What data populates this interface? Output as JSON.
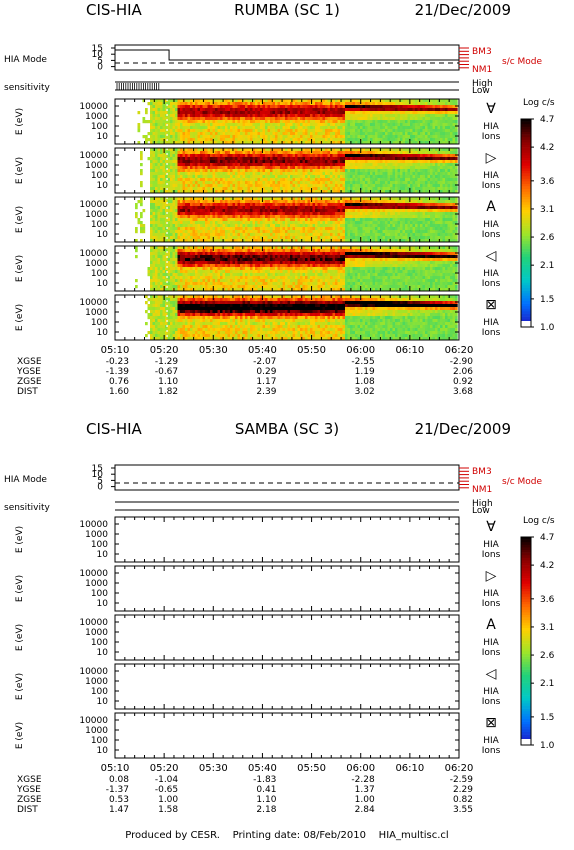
{
  "chart_data": {
    "type": "heatmap",
    "figure_id": "HIA_multisc.cl",
    "x_ticks": [
      "05:10",
      "05:20",
      "05:30",
      "05:40",
      "05:50",
      "06:00",
      "06:10",
      "06:20"
    ],
    "ephem_x_ticks": [
      "05:10",
      "05:20",
      "05:40",
      "06:00",
      "06:20"
    ],
    "ylabel": "E (eV)",
    "energy_ticks": [
      "10000",
      "1000",
      "100",
      "10"
    ],
    "mode_ticks": [
      "15",
      "10",
      "5",
      "0"
    ],
    "mode_labels": {
      "left": "HIA Mode",
      "top": "BM3",
      "bottom": "NM1",
      "right": "s/c Mode"
    },
    "sensitivity_label": "sensitivity",
    "sensitivity_levels": [
      "High",
      "Low"
    ],
    "colorbar": {
      "title": "Log c/s",
      "ticks": [
        "4.7",
        "4.2",
        "3.6",
        "3.1",
        "2.6",
        "2.1",
        "1.5",
        "1.0"
      ],
      "colors": [
        "#000000",
        "#8b0000",
        "#e00000",
        "#ff6a00",
        "#ffd000",
        "#9ee52a",
        "#22d27a",
        "#00c8c8",
        "#0070ff",
        "#2010c0"
      ]
    },
    "spacecraft": [
      {
        "instrument": "CIS-HIA",
        "title": "RUMBA (SC 1)",
        "date": "21/Dec/2009",
        "has_data": true,
        "mode_switch_time": "05:21",
        "data_start_time": "05:17",
        "panels": [
          {
            "direction_symbol": "∀",
            "label1": "HIA",
            "label2": "Ions",
            "peak": 4.0
          },
          {
            "direction_symbol": "▷",
            "label1": "HIA",
            "label2": "Ions",
            "peak": 4.1
          },
          {
            "direction_symbol": "A",
            "label1": "HIA",
            "label2": "Ions",
            "peak": 4.0
          },
          {
            "direction_symbol": "◁",
            "label1": "HIA",
            "label2": "Ions",
            "peak": 4.3
          },
          {
            "direction_symbol": "⊠",
            "label1": "HIA",
            "label2": "Ions",
            "peak": 4.7
          }
        ],
        "ephemeris": [
          {
            "name": "XGSE",
            "values": [
              "-0.23",
              "-1.29",
              "-2.07",
              "-2.55",
              "-2.90"
            ]
          },
          {
            "name": "YGSE",
            "values": [
              "-1.39",
              "-0.67",
              "0.29",
              "1.19",
              "2.06"
            ]
          },
          {
            "name": "ZGSE",
            "values": [
              "0.76",
              "1.10",
              "1.17",
              "1.08",
              "0.92"
            ]
          },
          {
            "name": "DIST",
            "values": [
              "1.60",
              "1.82",
              "2.39",
              "3.02",
              "3.68"
            ]
          }
        ]
      },
      {
        "instrument": "CIS-HIA",
        "title": "SAMBA (SC 3)",
        "date": "21/Dec/2009",
        "has_data": false,
        "panels": [
          {
            "direction_symbol": "∀",
            "label1": "HIA",
            "label2": "Ions"
          },
          {
            "direction_symbol": "▷",
            "label1": "HIA",
            "label2": "Ions"
          },
          {
            "direction_symbol": "A",
            "label1": "HIA",
            "label2": "Ions"
          },
          {
            "direction_symbol": "◁",
            "label1": "HIA",
            "label2": "Ions"
          },
          {
            "direction_symbol": "⊠",
            "label1": "HIA",
            "label2": "Ions"
          }
        ],
        "ephemeris": [
          {
            "name": "XGSE",
            "values": [
              "0.08",
              "-1.04",
              "-1.83",
              "-2.28",
              "-2.59"
            ]
          },
          {
            "name": "YGSE",
            "values": [
              "-1.37",
              "-0.65",
              "0.41",
              "1.37",
              "2.29"
            ]
          },
          {
            "name": "ZGSE",
            "values": [
              "0.53",
              "1.00",
              "1.10",
              "1.00",
              "0.82"
            ]
          },
          {
            "name": "DIST",
            "values": [
              "1.47",
              "1.58",
              "2.18",
              "2.84",
              "3.55"
            ]
          }
        ]
      }
    ]
  },
  "footer": {
    "produced": "Produced by CESR.",
    "printing": "Printing date: 08/Feb/2010",
    "file": "HIA_multisc.cl"
  }
}
